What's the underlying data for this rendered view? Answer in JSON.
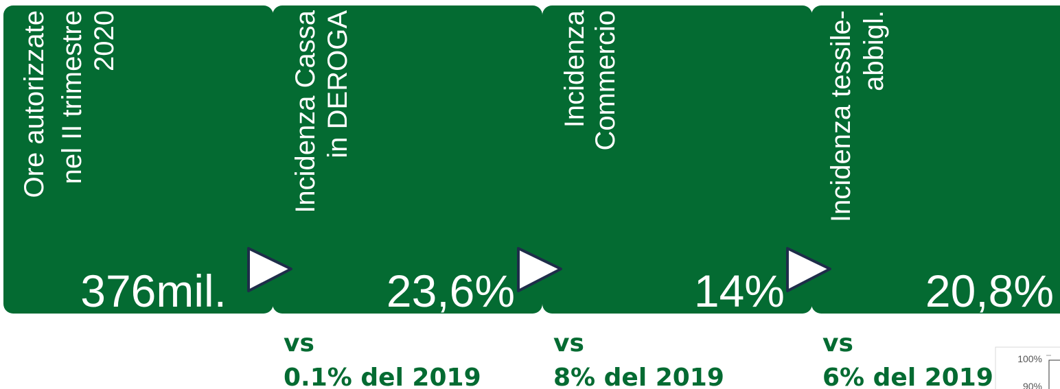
{
  "cards": [
    {
      "label_lines": [
        "Ore autorizzate",
        "nel II trimestre",
        "2020"
      ],
      "value": "376mil."
    },
    {
      "label_lines": [
        "Incidenza Cassa",
        "in DEROGA"
      ],
      "value": "23,6%",
      "comparison": {
        "prefix": "vs",
        "text": "0.1% del 2019"
      }
    },
    {
      "label_lines": [
        "Incidenza",
        "Commercio"
      ],
      "value": "14%",
      "comparison": {
        "prefix": "vs",
        "text": "8% del 2019"
      }
    },
    {
      "label_lines": [
        "Incidenza tessile-",
        "abbigl."
      ],
      "value": "20,8%",
      "comparison": {
        "prefix": "vs",
        "text": "6% del 2019"
      }
    }
  ],
  "chart_fragment": {
    "ticks": [
      "100%",
      "90%"
    ]
  }
}
